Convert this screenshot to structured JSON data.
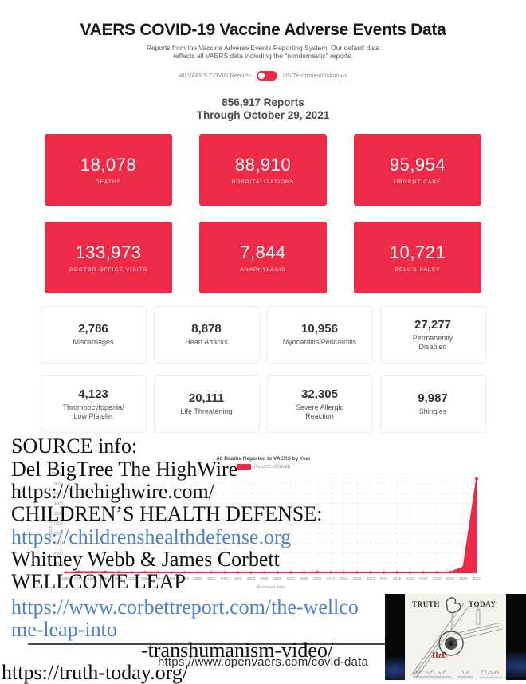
{
  "colors": {
    "accent_red": "#ee2b47",
    "link_blue": "#4d82c6"
  },
  "header": {
    "title": "VAERS COVID-19 Vaccine Adverse Events Data",
    "subtitle_line1": "Reports from the Vaccine Adverse Events Reporting System. Our default data",
    "subtitle_line2": "reflects all VAERS data including the \"nondomestic\" reports.",
    "toggle": {
      "left_label": "All VAERS COVID Reports",
      "right_label": "US/Territories/Unknown",
      "state": "left"
    },
    "reports_count": "856,917 Reports",
    "reports_through": "Through October 29, 2021"
  },
  "stat_cards_red": [
    {
      "value": "18,078",
      "label": "DEATHS"
    },
    {
      "value": "88,910",
      "label": "HOSPITALIZATIONS"
    },
    {
      "value": "95,954",
      "label": "URGENT CARE"
    },
    {
      "value": "133,973",
      "label": "DOCTOR OFFICE VISITS"
    },
    {
      "value": "7,844",
      "label": "ANAPHYLAXIS"
    },
    {
      "value": "10,721",
      "label": "BELL'S PALSY"
    }
  ],
  "stat_cards_white": [
    {
      "value": "2,786",
      "label": "Miscarriages"
    },
    {
      "value": "8,878",
      "label": "Heart Attacks"
    },
    {
      "value": "10,956",
      "label": "Myocarditis/Pericarditis"
    },
    {
      "value": "27,277",
      "label": "Permanently\nDisabled"
    },
    {
      "value": "4,123",
      "label": "Thrombocytopenia/\nLow Platelet"
    },
    {
      "value": "20,111",
      "label": "Life Threatening"
    },
    {
      "value": "32,305",
      "label": "Severe Allergic\nReaction"
    },
    {
      "value": "9,987",
      "label": "Shingles"
    }
  ],
  "chart_data": {
    "type": "area",
    "title": "All Deaths Reported to VAERS by Year",
    "legend": [
      "Reports of Death"
    ],
    "xlabel": "Received Year",
    "ylabel": "Reports of Death",
    "ylim": [
      0,
      20000
    ],
    "ytick_step": 2000,
    "grid": true,
    "x": [
      1990,
      1991,
      1992,
      1993,
      1994,
      1995,
      1996,
      1997,
      1998,
      1999,
      2000,
      2001,
      2002,
      2003,
      2004,
      2005,
      2006,
      2007,
      2008,
      2009,
      2010,
      2011,
      2012,
      2013,
      2014,
      2015,
      2016,
      2017,
      2018,
      2019,
      2020,
      2021
    ],
    "values": [
      170,
      290,
      255,
      275,
      200,
      190,
      230,
      210,
      180,
      175,
      185,
      185,
      180,
      150,
      140,
      170,
      135,
      160,
      145,
      220,
      175,
      190,
      165,
      160,
      135,
      160,
      140,
      160,
      175,
      205,
      1200,
      19000
    ]
  },
  "overlay": {
    "lines": [
      {
        "text": "SOURCE info:",
        "link": false
      },
      {
        "text": "Del BigTree The HighWire",
        "link": false
      },
      {
        "text": "https://thehighwire.com/",
        "link": false
      },
      {
        "text": "CHILDREN’S HEALTH DEFENSE:",
        "link": false
      },
      {
        "text": "https://childrenshealthdefense.org",
        "link": true
      },
      {
        "text": "Whitney Webb & James Corbett",
        "link": false
      },
      {
        "text": "WELLCOME LEAP",
        "link": false
      },
      {
        "text": "https://www.corbettreport.com/the-wellco",
        "link": true
      },
      {
        "text": "me-leap-into",
        "link": true
      },
      {
        "text": "-transhumanism-video/",
        "link": false
      },
      {
        "text": "https://truth-today.org/",
        "link": false
      }
    ]
  },
  "watermark_url": "https://www.openvaers.com/covid-data",
  "thumbnail": {
    "left_text": "TRUTH",
    "right_text": "TODAY",
    "watermark": "HzB"
  }
}
